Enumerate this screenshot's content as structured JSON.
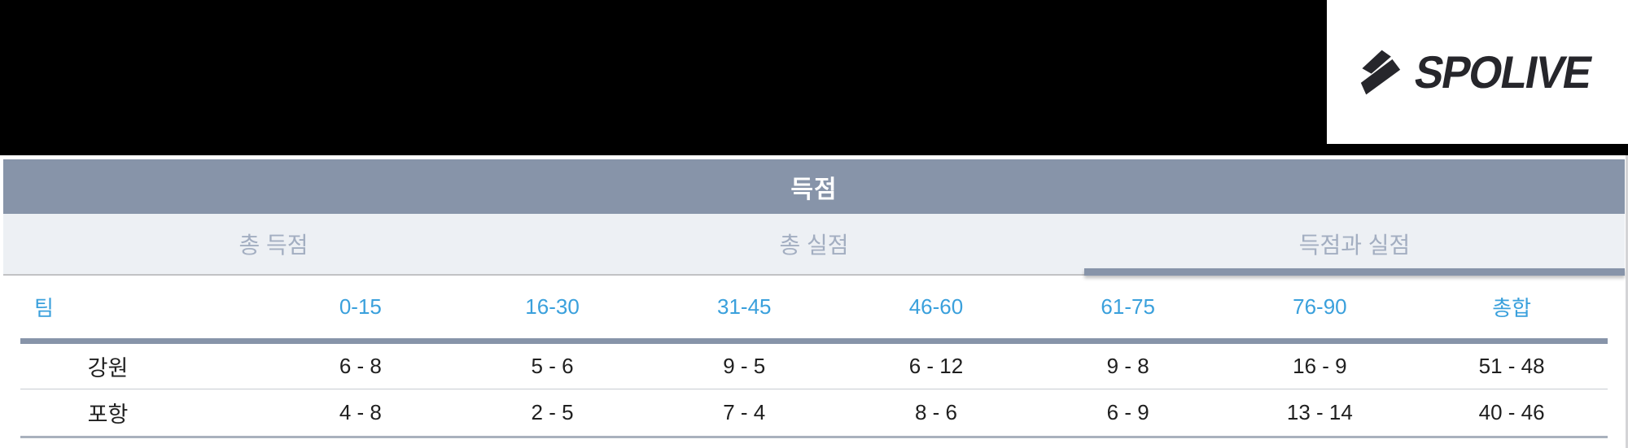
{
  "brand": {
    "name": "SPOLIVE",
    "mark_icon": "spolive-arrow-icon"
  },
  "panel": {
    "title": "득점"
  },
  "tabs": [
    {
      "label": "총 득점",
      "active": false
    },
    {
      "label": "총 실점",
      "active": false
    },
    {
      "label": "득점과 실점",
      "active": true
    }
  ],
  "table": {
    "columns": [
      "팀",
      "0-15",
      "16-30",
      "31-45",
      "46-60",
      "61-75",
      "76-90",
      "총합"
    ],
    "rows": [
      {
        "team": "강원",
        "values": [
          "6 - 8",
          "5 - 6",
          "9 - 5",
          "6 - 12",
          "9 - 8",
          "16 - 9",
          "51 - 48"
        ]
      },
      {
        "team": "포항",
        "values": [
          "4 - 8",
          "2 - 5",
          "7 - 4",
          "8 - 6",
          "6 - 9",
          "13 - 14",
          "40 - 46"
        ]
      }
    ]
  },
  "colors": {
    "banner_bg": "#000000",
    "panel_header_bg": "#8794a9",
    "tabs_bg": "#edf0f4",
    "tab_text": "#a3aec1",
    "active_underline": "#8794a9",
    "column_header_text": "#3aa0dc",
    "data_text": "#1f1f1f",
    "logo_text": "#26262b"
  }
}
